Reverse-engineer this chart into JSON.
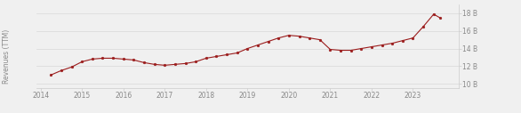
{
  "title": "",
  "ylabel_left": "Revenues (TTM)",
  "ylim": [
    9500000000.0,
    19000000000.0
  ],
  "yticks": [
    10000000000.0,
    12000000000.0,
    14000000000.0,
    16000000000.0,
    18000000000.0
  ],
  "ytick_labels": [
    "10 B",
    "12 B",
    "14 B",
    "16 B",
    "18 B"
  ],
  "line_color": "#9B1C1C",
  "marker_color": "#9B1C1C",
  "bg_color": "#f0f0f0",
  "x": [
    2014.25,
    2014.5,
    2014.75,
    2015.0,
    2015.25,
    2015.5,
    2015.75,
    2016.0,
    2016.25,
    2016.5,
    2016.75,
    2017.0,
    2017.25,
    2017.5,
    2017.75,
    2018.0,
    2018.25,
    2018.5,
    2018.75,
    2019.0,
    2019.25,
    2019.5,
    2019.75,
    2020.0,
    2020.25,
    2020.5,
    2020.75,
    2021.0,
    2021.25,
    2021.5,
    2021.75,
    2022.0,
    2022.25,
    2022.5,
    2022.75,
    2023.0,
    2023.25,
    2023.5,
    2023.65
  ],
  "y": [
    11000000000.0,
    11500000000.0,
    11900000000.0,
    12500000000.0,
    12800000000.0,
    12900000000.0,
    12900000000.0,
    12800000000.0,
    12700000000.0,
    12400000000.0,
    12200000000.0,
    12100000000.0,
    12200000000.0,
    12300000000.0,
    12500000000.0,
    12900000000.0,
    13100000000.0,
    13300000000.0,
    13500000000.0,
    14000000000.0,
    14400000000.0,
    14800000000.0,
    15200000000.0,
    15500000000.0,
    15400000000.0,
    15200000000.0,
    15000000000.0,
    13900000000.0,
    13800000000.0,
    13800000000.0,
    14000000000.0,
    14200000000.0,
    14400000000.0,
    14600000000.0,
    14900000000.0,
    15200000000.0,
    16500000000.0,
    17900000000.0,
    17500000000.0
  ],
  "xticks": [
    2014,
    2015,
    2016,
    2017,
    2018,
    2019,
    2020,
    2021,
    2022,
    2023
  ],
  "xlim": [
    2013.9,
    2024.1
  ],
  "tick_fontsize": 5.5,
  "label_fontsize": 5.5,
  "tick_color": "#888888",
  "grid_color": "#d8d8d8",
  "spine_color": "#cccccc"
}
